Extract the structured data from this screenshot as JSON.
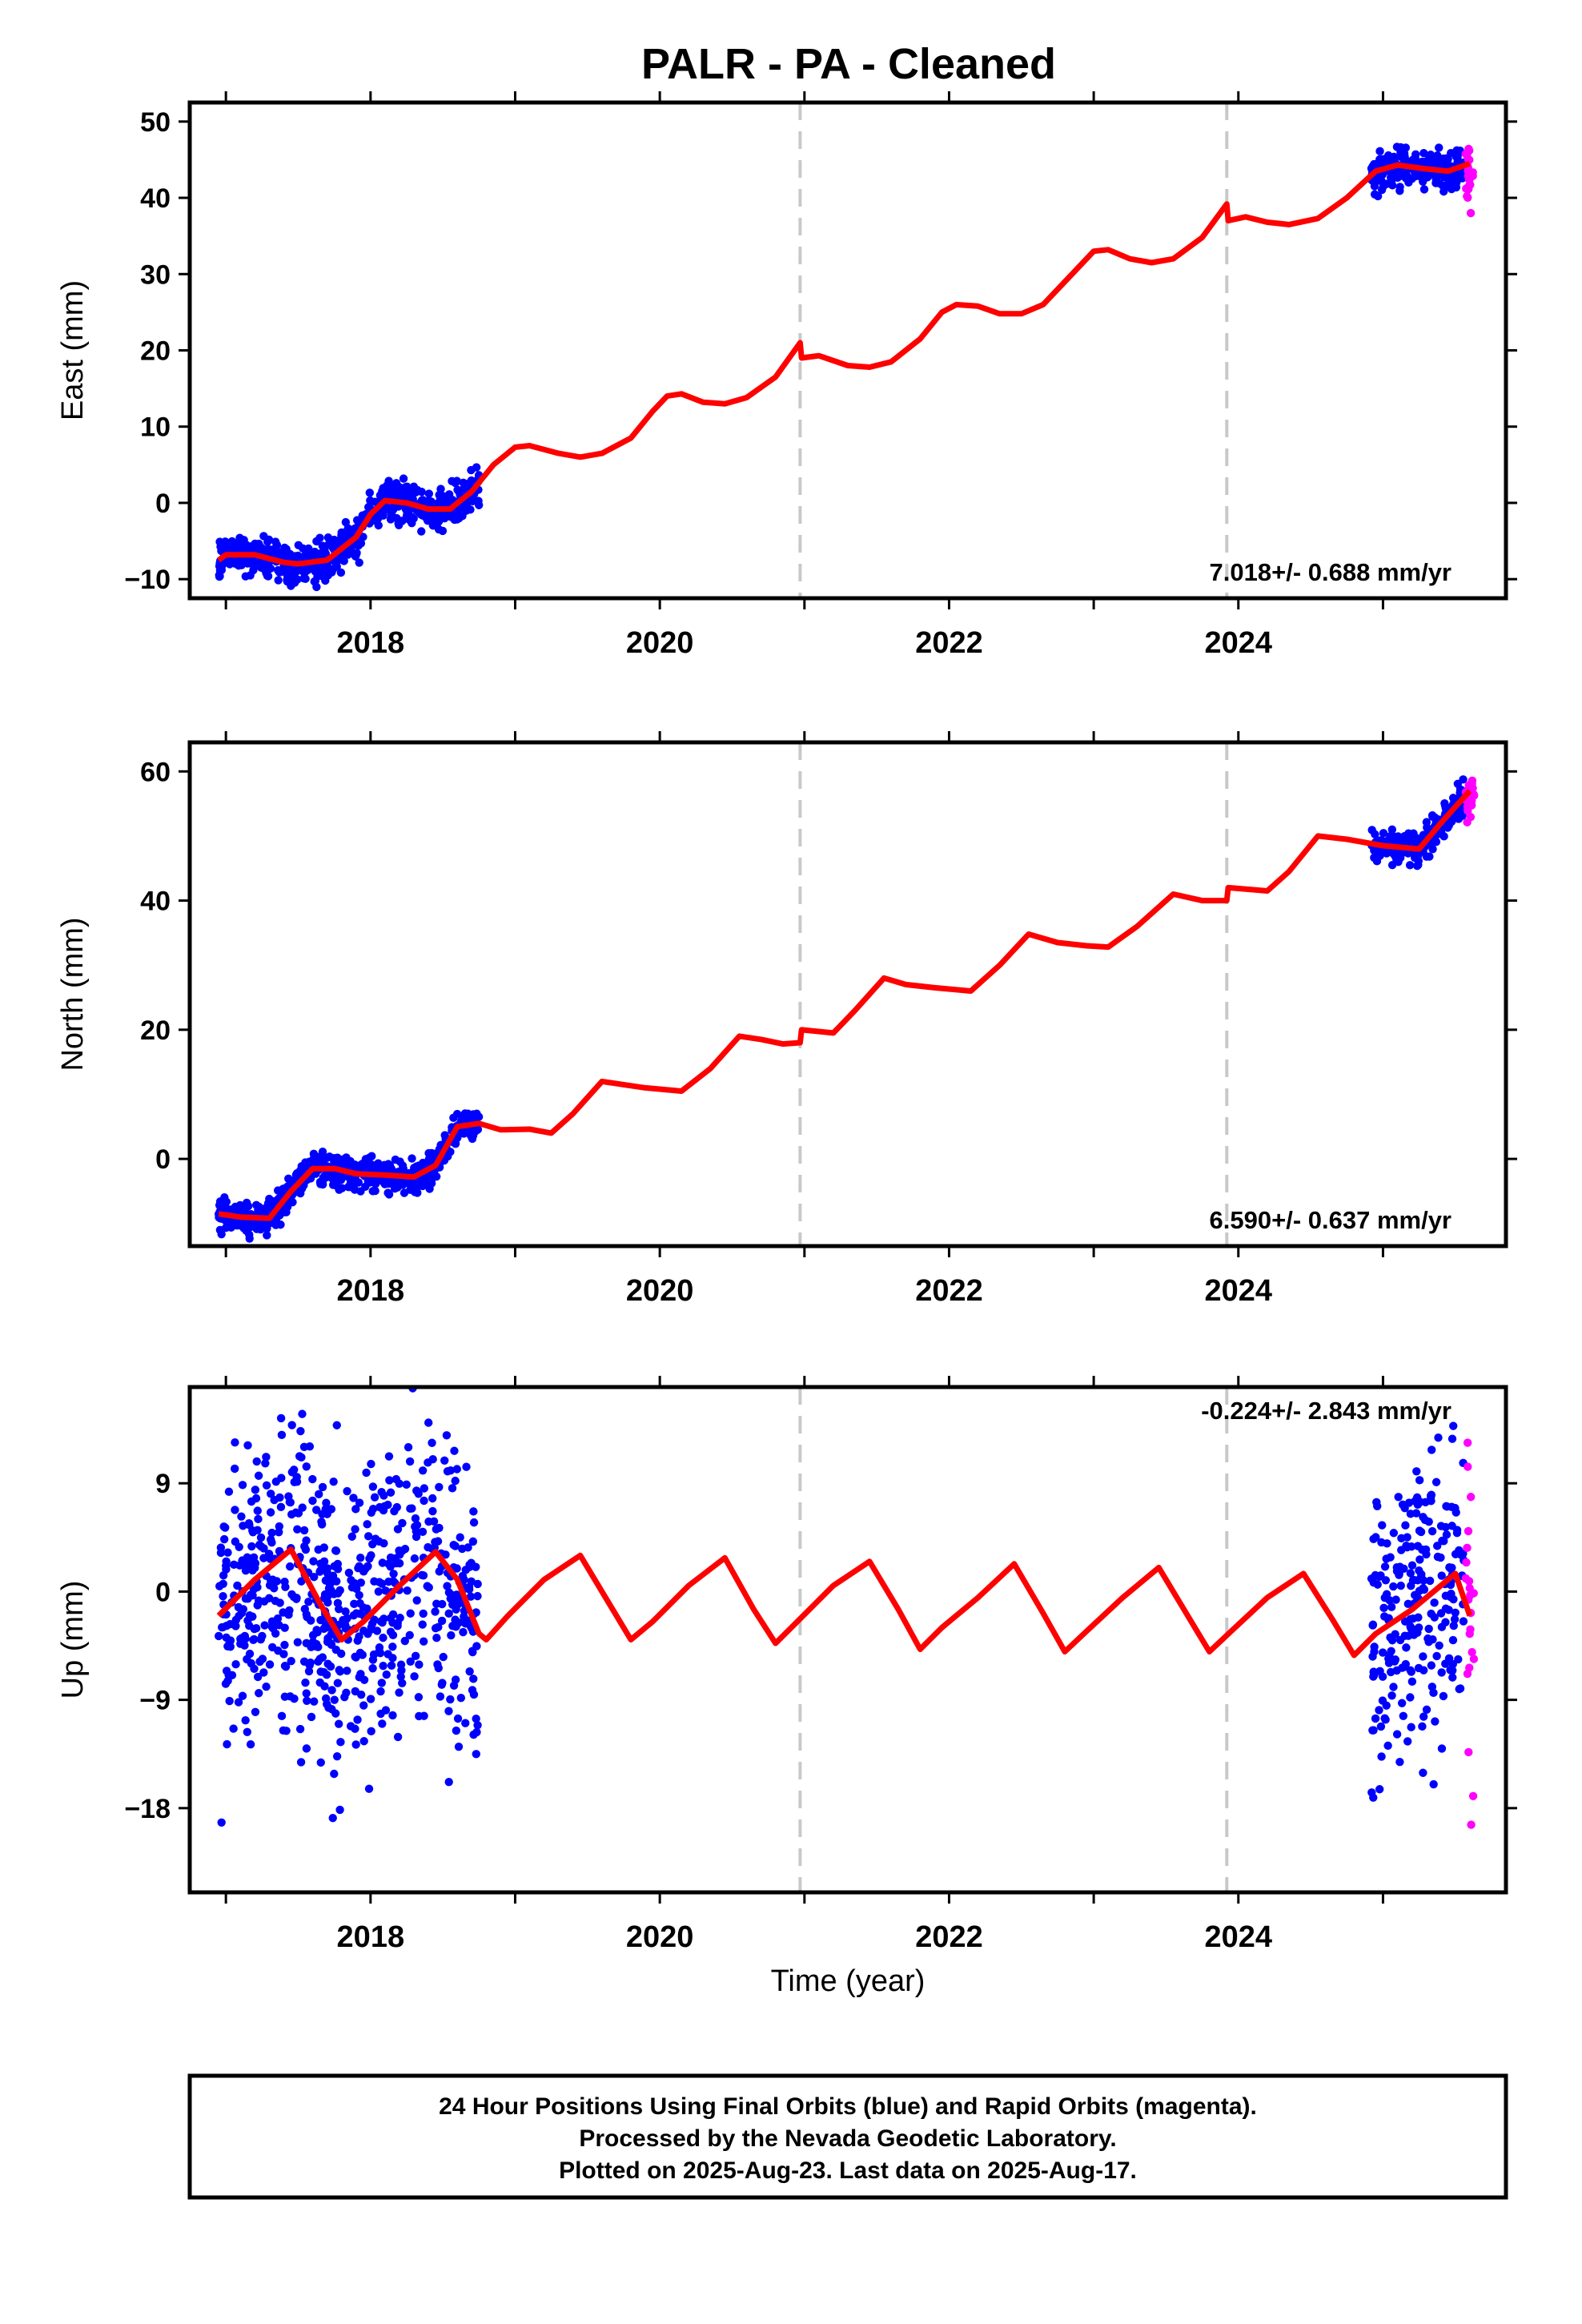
{
  "title": "PALR  - PA - Cleaned",
  "xlabel": "Time (year)",
  "colors": {
    "final_orbits": "#0000ff",
    "rapid_orbits": "#ff00ff",
    "model": "#ff0000",
    "equipment_change": "#c8c8c8"
  },
  "footer": {
    "line1": "24 Hour Positions Using Final Orbits (blue) and Rapid Orbits (magenta).",
    "line2": "Processed by the Nevada Geodetic Laboratory.",
    "line3": "Plotted on 2025-Aug-23. Last data on 2025-Aug-17."
  },
  "chart_data": [
    {
      "type": "scatter",
      "component": "East",
      "ylabel": "East (mm)",
      "xlim": [
        2016.75,
        2025.85
      ],
      "ylim": [
        -12.5,
        52.5
      ],
      "xticks": [
        2018,
        2020,
        2022,
        2024
      ],
      "yticks": [
        -10,
        0,
        10,
        20,
        30,
        40,
        50
      ],
      "rate_label": "7.018+/- 0.688 mm/yr",
      "rate_label_position": "bottom-right",
      "equipment_changes": [
        2020.97,
        2023.92
      ],
      "data_spans": {
        "final": [
          [
            2016.95,
            2018.75
          ],
          [
            2024.92,
            2025.56
          ]
        ],
        "rapid": [
          [
            2025.57,
            2025.63
          ]
        ]
      },
      "model_curve": [
        [
          2016.95,
          -7.5
        ],
        [
          2017.0,
          -6.8
        ],
        [
          2017.2,
          -6.8
        ],
        [
          2017.4,
          -7.8
        ],
        [
          2017.5,
          -8.0
        ],
        [
          2017.7,
          -7.5
        ],
        [
          2017.9,
          -4.5
        ],
        [
          2018.0,
          -1.5
        ],
        [
          2018.1,
          0.3
        ],
        [
          2018.25,
          0.0
        ],
        [
          2018.4,
          -0.8
        ],
        [
          2018.55,
          -0.8
        ],
        [
          2018.7,
          1.5
        ],
        [
          2018.85,
          5.0
        ],
        [
          2019.0,
          7.3
        ],
        [
          2019.1,
          7.5
        ],
        [
          2019.3,
          6.5
        ],
        [
          2019.45,
          6.0
        ],
        [
          2019.6,
          6.5
        ],
        [
          2019.8,
          8.5
        ],
        [
          2019.95,
          12.0
        ],
        [
          2020.05,
          14.0
        ],
        [
          2020.15,
          14.3
        ],
        [
          2020.3,
          13.2
        ],
        [
          2020.45,
          13.0
        ],
        [
          2020.6,
          13.8
        ],
        [
          2020.8,
          16.5
        ],
        [
          2020.97,
          21.0
        ],
        [
          2020.98,
          19.0
        ],
        [
          2021.1,
          19.3
        ],
        [
          2021.3,
          18.0
        ],
        [
          2021.45,
          17.8
        ],
        [
          2021.6,
          18.5
        ],
        [
          2021.8,
          21.5
        ],
        [
          2021.95,
          25.0
        ],
        [
          2022.05,
          26.0
        ],
        [
          2022.2,
          25.8
        ],
        [
          2022.35,
          24.8
        ],
        [
          2022.5,
          24.8
        ],
        [
          2022.65,
          26.0
        ],
        [
          2022.85,
          30.0
        ],
        [
          2023.0,
          33.0
        ],
        [
          2023.1,
          33.2
        ],
        [
          2023.25,
          32.0
        ],
        [
          2023.4,
          31.5
        ],
        [
          2023.55,
          32.0
        ],
        [
          2023.75,
          34.8
        ],
        [
          2023.92,
          39.2
        ],
        [
          2023.93,
          37.0
        ],
        [
          2024.05,
          37.5
        ],
        [
          2024.2,
          36.8
        ],
        [
          2024.35,
          36.5
        ],
        [
          2024.55,
          37.3
        ],
        [
          2024.75,
          40.0
        ],
        [
          2024.95,
          43.5
        ],
        [
          2025.1,
          44.3
        ],
        [
          2025.3,
          43.8
        ],
        [
          2025.45,
          43.5
        ],
        [
          2025.6,
          44.5
        ]
      ],
      "scatter_spread_mm": 1.3
    },
    {
      "type": "scatter",
      "component": "North",
      "ylabel": "North (mm)",
      "xlim": [
        2016.75,
        2025.85
      ],
      "ylim": [
        -13.5,
        64.5
      ],
      "xticks": [
        2018,
        2020,
        2022,
        2024
      ],
      "yticks": [
        0,
        20,
        40,
        60
      ],
      "rate_label": "6.590+/- 0.637 mm/yr",
      "rate_label_position": "bottom-right",
      "equipment_changes": [
        2020.97,
        2023.92
      ],
      "data_spans": {
        "final": [
          [
            2016.95,
            2018.75
          ],
          [
            2024.92,
            2025.56
          ]
        ],
        "rapid": [
          [
            2025.57,
            2025.63
          ]
        ]
      },
      "model_curve": [
        [
          2016.95,
          -8.5
        ],
        [
          2017.1,
          -9.0
        ],
        [
          2017.3,
          -9.2
        ],
        [
          2017.45,
          -5.0
        ],
        [
          2017.6,
          -1.5
        ],
        [
          2017.75,
          -1.5
        ],
        [
          2017.9,
          -2.3
        ],
        [
          2018.1,
          -2.5
        ],
        [
          2018.3,
          -2.8
        ],
        [
          2018.45,
          -1.0
        ],
        [
          2018.6,
          5.0
        ],
        [
          2018.75,
          5.5
        ],
        [
          2018.9,
          4.5
        ],
        [
          2019.1,
          4.6
        ],
        [
          2019.25,
          4.0
        ],
        [
          2019.4,
          7.0
        ],
        [
          2019.6,
          12.0
        ],
        [
          2019.75,
          11.5
        ],
        [
          2019.9,
          11.0
        ],
        [
          2020.15,
          10.5
        ],
        [
          2020.35,
          14.0
        ],
        [
          2020.55,
          19.0
        ],
        [
          2020.7,
          18.5
        ],
        [
          2020.85,
          17.8
        ],
        [
          2020.97,
          18.0
        ],
        [
          2020.98,
          20.0
        ],
        [
          2021.2,
          19.5
        ],
        [
          2021.35,
          23.0
        ],
        [
          2021.55,
          28.0
        ],
        [
          2021.7,
          27.0
        ],
        [
          2021.9,
          26.5
        ],
        [
          2022.15,
          26.0
        ],
        [
          2022.35,
          30.0
        ],
        [
          2022.55,
          34.8
        ],
        [
          2022.75,
          33.5
        ],
        [
          2022.95,
          33.0
        ],
        [
          2023.1,
          32.8
        ],
        [
          2023.3,
          36.0
        ],
        [
          2023.55,
          41.0
        ],
        [
          2023.75,
          40.0
        ],
        [
          2023.92,
          40.0
        ],
        [
          2023.93,
          42.0
        ],
        [
          2024.2,
          41.5
        ],
        [
          2024.35,
          44.5
        ],
        [
          2024.55,
          50.0
        ],
        [
          2024.75,
          49.5
        ],
        [
          2025.0,
          48.5
        ],
        [
          2025.25,
          48.0
        ],
        [
          2025.4,
          52.0
        ],
        [
          2025.6,
          57.0
        ]
      ],
      "scatter_spread_mm": 1.2
    },
    {
      "type": "scatter",
      "component": "Up",
      "ylabel": "Up (mm)",
      "xlim": [
        2016.75,
        2025.85
      ],
      "ylim": [
        -25,
        17
      ],
      "xticks": [
        2018,
        2020,
        2022,
        2024
      ],
      "yticks": [
        -18,
        -9,
        0,
        9
      ],
      "rate_label": "-0.224+/- 2.843 mm/yr",
      "rate_label_position": "top-right",
      "equipment_changes": [
        2020.97,
        2023.92
      ],
      "data_spans": {
        "final": [
          [
            2016.95,
            2018.75
          ],
          [
            2024.92,
            2025.56
          ]
        ],
        "rapid": [
          [
            2025.57,
            2025.63
          ]
        ]
      },
      "model_curve": [
        [
          2016.95,
          -2.0
        ],
        [
          2017.2,
          1.0
        ],
        [
          2017.45,
          3.5
        ],
        [
          2017.65,
          -1.0
        ],
        [
          2017.8,
          -4.0
        ],
        [
          2017.95,
          -2.5
        ],
        [
          2018.2,
          0.5
        ],
        [
          2018.45,
          3.3
        ],
        [
          2018.6,
          1.0
        ],
        [
          2018.75,
          -3.5
        ],
        [
          2018.8,
          -4.0
        ],
        [
          2018.95,
          -2.0
        ],
        [
          2019.2,
          1.0
        ],
        [
          2019.45,
          3.0
        ],
        [
          2019.65,
          -1.0
        ],
        [
          2019.8,
          -4.0
        ],
        [
          2019.95,
          -2.5
        ],
        [
          2020.2,
          0.5
        ],
        [
          2020.45,
          2.8
        ],
        [
          2020.65,
          -1.5
        ],
        [
          2020.8,
          -4.3
        ],
        [
          2020.95,
          -2.5
        ],
        [
          2021.2,
          0.5
        ],
        [
          2021.45,
          2.5
        ],
        [
          2021.65,
          -1.5
        ],
        [
          2021.8,
          -4.8
        ],
        [
          2021.95,
          -3.0
        ],
        [
          2022.2,
          -0.5
        ],
        [
          2022.45,
          2.3
        ],
        [
          2022.65,
          -1.8
        ],
        [
          2022.8,
          -5.0
        ],
        [
          2022.95,
          -3.3
        ],
        [
          2023.2,
          -0.5
        ],
        [
          2023.45,
          2.0
        ],
        [
          2023.65,
          -2.0
        ],
        [
          2023.8,
          -5.0
        ],
        [
          2023.95,
          -3.3
        ],
        [
          2024.2,
          -0.5
        ],
        [
          2024.45,
          1.5
        ],
        [
          2024.65,
          -2.3
        ],
        [
          2024.8,
          -5.3
        ],
        [
          2024.95,
          -3.5
        ],
        [
          2025.2,
          -1.5
        ],
        [
          2025.4,
          0.5
        ],
        [
          2025.5,
          1.5
        ],
        [
          2025.6,
          -2.0
        ]
      ],
      "scatter_spread_mm": 6.0
    }
  ]
}
